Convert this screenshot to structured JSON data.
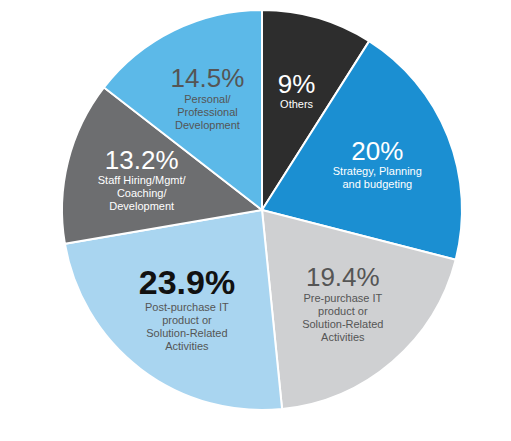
{
  "chart_data": {
    "type": "pie",
    "categories": [
      "Others",
      "Strategy, Planning and budgeting",
      "Pre-purchase IT product or Solution-Related Activities",
      "Post-purchase IT product or Solution-Related Activities",
      "Staff Hiring/Mgmt/Coaching/Development",
      "Personal/Professional Development"
    ],
    "values": [
      9,
      20,
      19.4,
      23.9,
      13.2,
      14.5
    ],
    "value_labels": [
      "9%",
      "20%",
      "19.4%",
      "23.9%",
      "13.2%",
      "14.5%"
    ],
    "colors": [
      "#2d2d2d",
      "#1b8fd2",
      "#cfd0d2",
      "#a9d5f0",
      "#6d6e70",
      "#5cb9e8"
    ],
    "data_labels": true
  }
}
